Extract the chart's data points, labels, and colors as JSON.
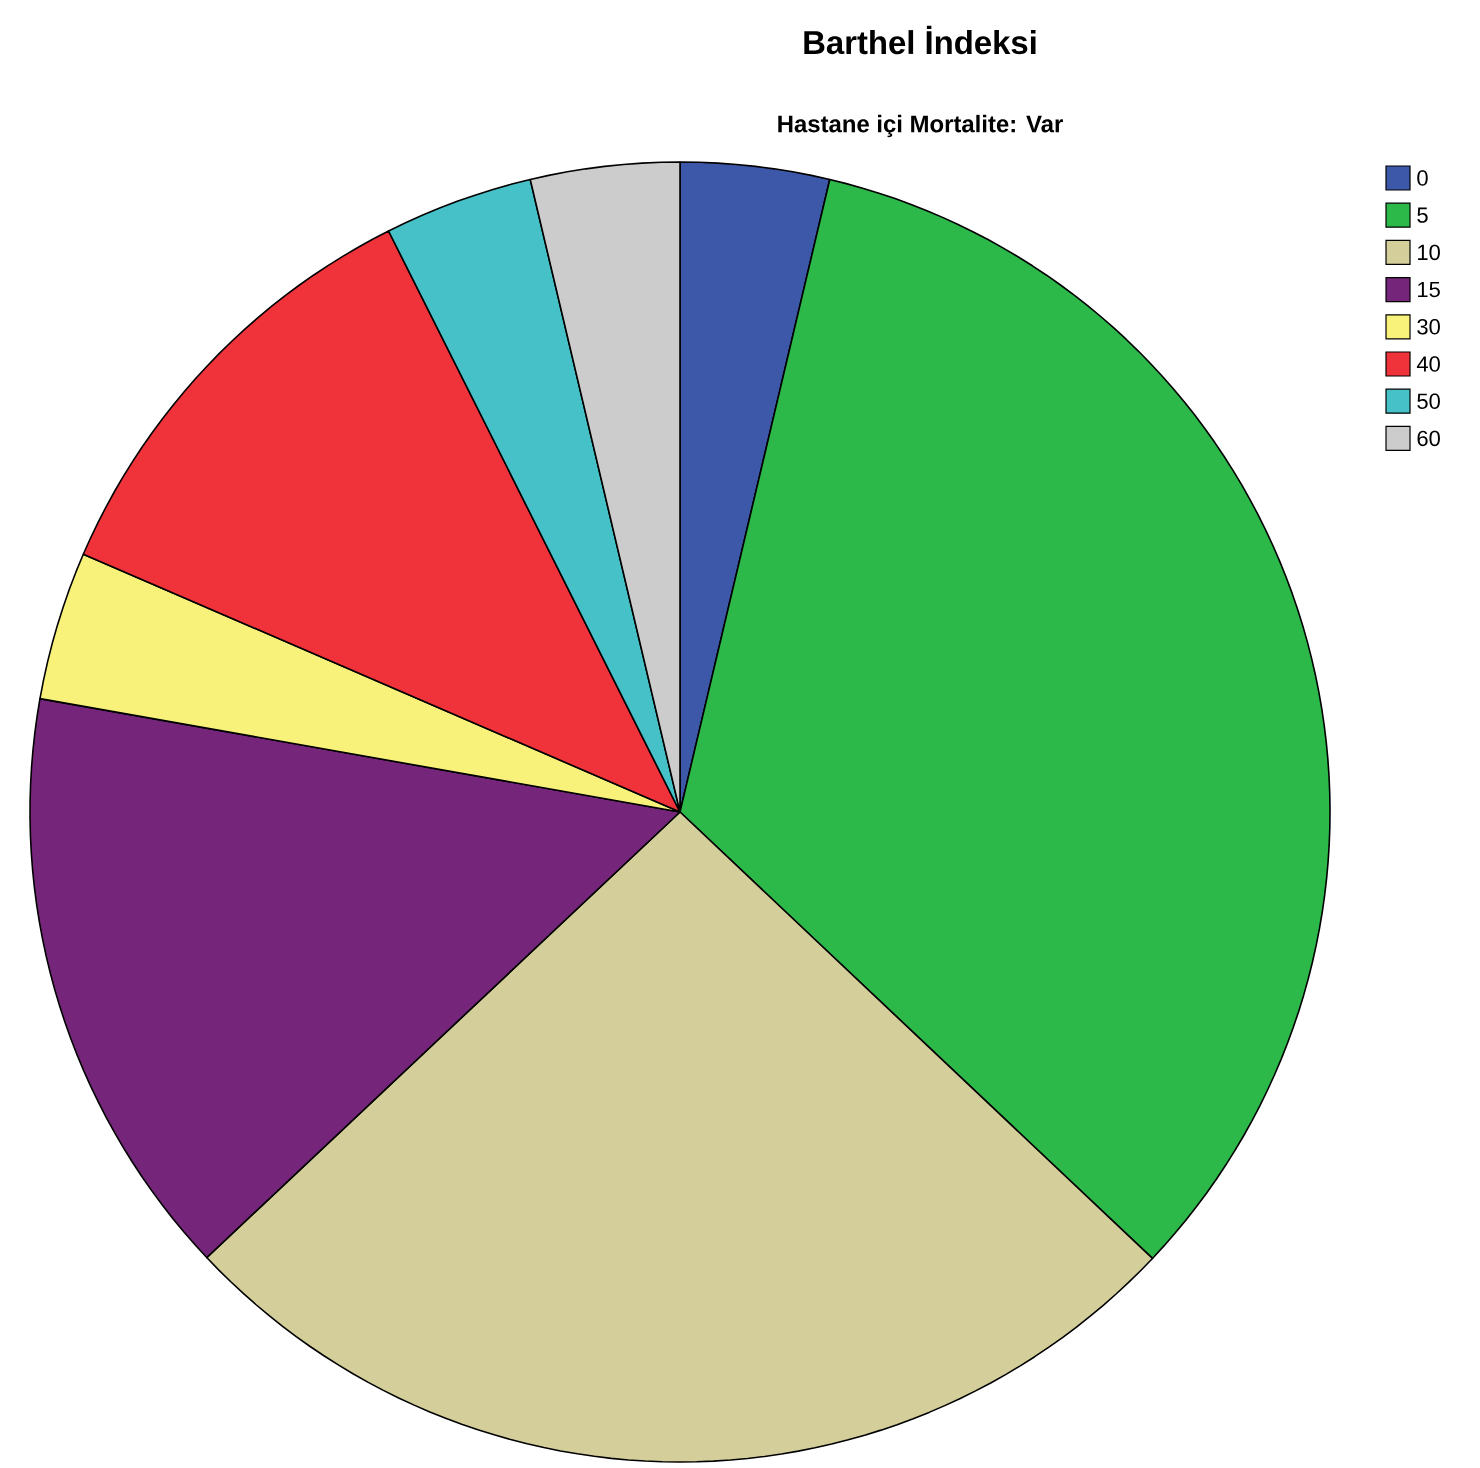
{
  "chart_data": {
    "type": "pie",
    "title": "Barthel İndeksi",
    "subtitle": "Hastane içi Mortalite: Var",
    "categories": [
      "0",
      "5",
      "10",
      "15",
      "30",
      "40",
      "50",
      "60"
    ],
    "values": [
      3.7,
      33.35,
      25.93,
      14.81,
      3.7,
      11.11,
      3.7,
      3.7
    ],
    "colors": [
      "#3d58a8",
      "#2db84a",
      "#d4cf9a",
      "#76267a",
      "#f8f27a",
      "#f0333b",
      "#46c1c8",
      "#cccccc"
    ],
    "legend": "right"
  }
}
